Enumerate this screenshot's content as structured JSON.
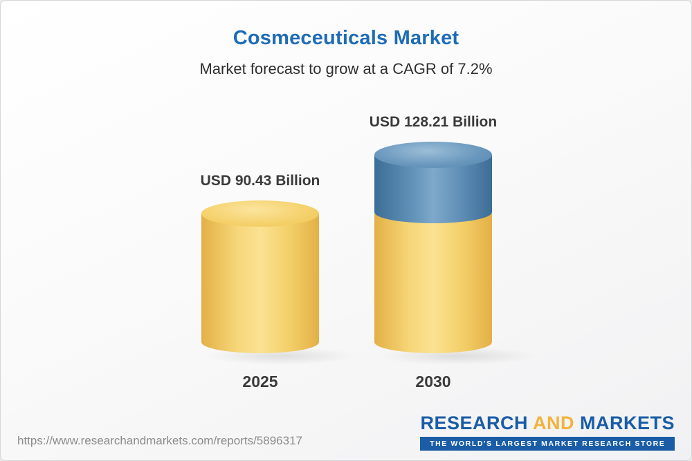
{
  "header": {
    "title": "Cosmeceuticals Market",
    "subtitle": "Market forecast to grow at a CAGR of 7.2%"
  },
  "chart_data": {
    "type": "bar",
    "style": "3d-cylinder",
    "categories": [
      "2025",
      "2030"
    ],
    "values": [
      90.43,
      128.21
    ],
    "value_labels": [
      "USD 90.43 Billion",
      "USD 128.21 Billion"
    ],
    "unit": "USD Billion",
    "title": "Cosmeceuticals Market",
    "subtitle": "Market forecast to grow at a CAGR of 7.2%",
    "cagr": "7.2%",
    "ylim": [
      0,
      128.21
    ],
    "grid": false,
    "legend": "none",
    "colors": {
      "bar_2025": "#F5CE5E",
      "bar_2030_base": "#F5CE5E",
      "bar_2030_growth": "#4C7EA8",
      "title": "#1E6CB5"
    },
    "notes": "2030 bar is stacked: yellow base equals 2025 value, blue top segment is growth from 90.43 to 128.21"
  },
  "footer": {
    "source_url": "https://www.researchandmarkets.com/reports/5896317",
    "logo": {
      "research": "RESEARCH",
      "and": "AND",
      "markets": "MARKETS",
      "tagline": "THE WORLD'S LARGEST MARKET RESEARCH STORE"
    }
  }
}
